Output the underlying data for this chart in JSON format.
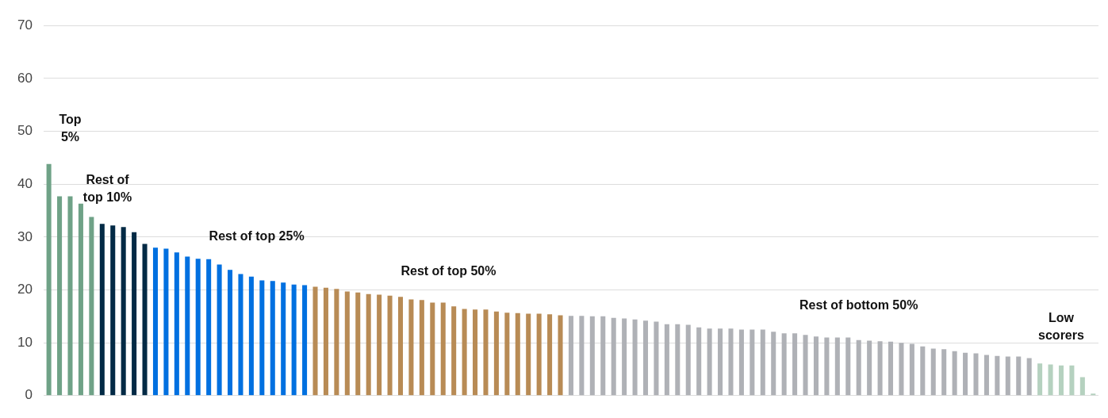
{
  "chart_data": {
    "type": "bar",
    "categories": [
      null,
      null,
      null,
      null,
      null,
      null,
      null,
      null,
      null,
      null,
      null,
      null,
      null,
      null,
      null,
      null,
      null,
      null,
      null,
      null,
      null,
      null,
      null,
      null,
      null,
      null,
      null,
      null,
      null,
      null,
      null,
      null,
      null,
      null,
      null,
      null,
      null,
      null,
      null,
      null,
      null,
      null,
      null,
      null,
      null,
      null,
      null,
      null,
      null,
      null,
      null,
      null,
      null,
      null,
      null,
      null,
      null,
      null,
      null,
      null,
      null,
      null,
      null,
      null,
      null,
      null,
      null,
      null,
      null,
      null,
      null,
      null,
      null,
      null,
      null,
      null,
      null,
      null,
      null,
      null,
      null,
      null,
      null,
      null,
      null,
      null,
      null,
      null,
      null,
      null,
      null,
      null,
      null,
      null,
      null,
      null,
      null,
      null,
      null
    ],
    "values": [
      43.8,
      37.7,
      37.7,
      36.3,
      33.8,
      32.5,
      32.2,
      31.9,
      30.9,
      28.7,
      28.0,
      27.8,
      27.1,
      26.3,
      25.9,
      25.8,
      24.8,
      23.8,
      23.0,
      22.5,
      21.8,
      21.7,
      21.4,
      21.0,
      20.9,
      20.6,
      20.4,
      20.2,
      19.7,
      19.5,
      19.2,
      19.1,
      18.9,
      18.7,
      18.2,
      18.1,
      17.6,
      17.6,
      16.9,
      16.4,
      16.3,
      16.3,
      15.9,
      15.7,
      15.6,
      15.5,
      15.5,
      15.4,
      15.2,
      15.1,
      15.1,
      15.0,
      15.0,
      14.7,
      14.6,
      14.4,
      14.2,
      14.0,
      13.5,
      13.5,
      13.4,
      12.9,
      12.7,
      12.7,
      12.7,
      12.5,
      12.5,
      12.5,
      12.1,
      11.8,
      11.8,
      11.5,
      11.2,
      11.0,
      11.0,
      11.0,
      10.5,
      10.4,
      10.3,
      10.2,
      10.0,
      9.8,
      9.3,
      8.9,
      8.8,
      8.4,
      8.1,
      8.0,
      7.7,
      7.5,
      7.4,
      7.4,
      7.1,
      6.1,
      5.9,
      5.7,
      5.7,
      3.5,
      0.4
    ],
    "colors": [
      "#6fa287",
      "#6fa287",
      "#6fa287",
      "#6fa287",
      "#6fa287",
      "#032a45",
      "#032a45",
      "#032a45",
      "#032a45",
      "#032a45",
      "#0070e0",
      "#0070e0",
      "#0070e0",
      "#0070e0",
      "#0070e0",
      "#0070e0",
      "#0070e0",
      "#0070e0",
      "#0070e0",
      "#0070e0",
      "#0070e0",
      "#0070e0",
      "#0070e0",
      "#0070e0",
      "#0070e0",
      "#b88b55",
      "#b88b55",
      "#b88b55",
      "#b88b55",
      "#b88b55",
      "#b88b55",
      "#b88b55",
      "#b88b55",
      "#b88b55",
      "#b88b55",
      "#b88b55",
      "#b88b55",
      "#b88b55",
      "#b88b55",
      "#b88b55",
      "#b88b55",
      "#b88b55",
      "#b88b55",
      "#b88b55",
      "#b88b55",
      "#b88b55",
      "#b88b55",
      "#b88b55",
      "#b88b55",
      "#afb1b6",
      "#afb1b6",
      "#afb1b6",
      "#afb1b6",
      "#afb1b6",
      "#afb1b6",
      "#afb1b6",
      "#afb1b6",
      "#afb1b6",
      "#afb1b6",
      "#afb1b6",
      "#afb1b6",
      "#afb1b6",
      "#afb1b6",
      "#afb1b6",
      "#afb1b6",
      "#afb1b6",
      "#afb1b6",
      "#afb1b6",
      "#afb1b6",
      "#afb1b6",
      "#afb1b6",
      "#afb1b6",
      "#afb1b6",
      "#afb1b6",
      "#afb1b6",
      "#afb1b6",
      "#afb1b6",
      "#afb1b6",
      "#afb1b6",
      "#afb1b6",
      "#afb1b6",
      "#afb1b6",
      "#afb1b6",
      "#afb1b6",
      "#afb1b6",
      "#afb1b6",
      "#afb1b6",
      "#afb1b6",
      "#afb1b6",
      "#afb1b6",
      "#afb1b6",
      "#afb1b6",
      "#afb1b6",
      "#b5d1bf",
      "#b5d1bf",
      "#b5d1bf",
      "#b5d1bf",
      "#b5d1bf",
      "#b5d1bf"
    ],
    "ylim": [
      0,
      70
    ],
    "yticks": [
      0,
      10,
      20,
      30,
      40,
      50,
      60,
      70
    ],
    "grid": "y",
    "legend": false,
    "annotations": [
      "Top\n5%",
      "Rest of\ntop 10%",
      "Rest of top 25%",
      "Rest of top 50%",
      "Rest of bottom 50%",
      "Low\nscorers"
    ]
  }
}
